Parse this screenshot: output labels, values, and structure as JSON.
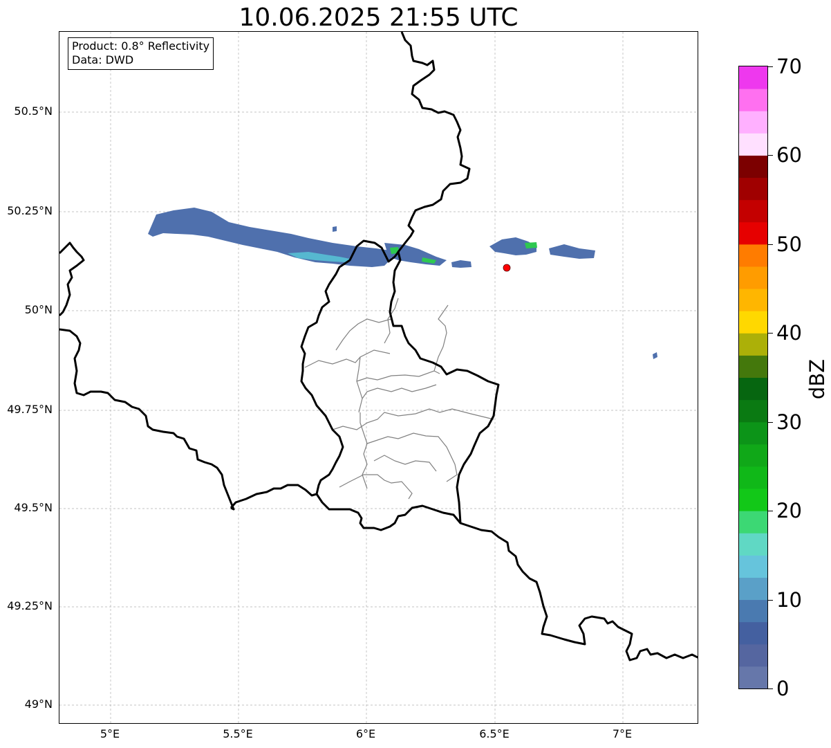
{
  "title": "10.06.2025 21:55 UTC",
  "info_box": {
    "product": "Product: 0.8° Reflectivity",
    "data": "Data: DWD"
  },
  "map": {
    "lat_ticks": [
      "50.5°N",
      "50.25°N",
      "50°N",
      "49.75°N",
      "49.5°N",
      "49.25°N",
      "49°N"
    ],
    "lon_ticks": [
      "5°E",
      "5.5°E",
      "6°E",
      "6.5°E",
      "7°E"
    ],
    "radar_site_marker": {
      "lon": 6.55,
      "lat": 50.11,
      "color": "#ff0000"
    }
  },
  "colorbar": {
    "label": "dBZ",
    "ticks": [
      "0",
      "10",
      "20",
      "30",
      "40",
      "50",
      "60",
      "70"
    ],
    "min": 0,
    "max": 70,
    "step": 2.5,
    "colors": [
      "#6677aa",
      "#5566a0",
      "#4460a0",
      "#4a7ab0",
      "#5aa0c8",
      "#66c4dc",
      "#60d8c4",
      "#3cd874",
      "#12c818",
      "#10b818",
      "#10a818",
      "#0c9418",
      "#0a7a12",
      "#066610",
      "#44780c",
      "#acb008",
      "#ffd800",
      "#ffb600",
      "#ff9c00",
      "#ff7c00",
      "#e60000",
      "#c40000",
      "#a00000",
      "#7c0000",
      "#ffe0ff",
      "#ffb0ff",
      "#ff70f0",
      "#ee38ee"
    ]
  }
}
